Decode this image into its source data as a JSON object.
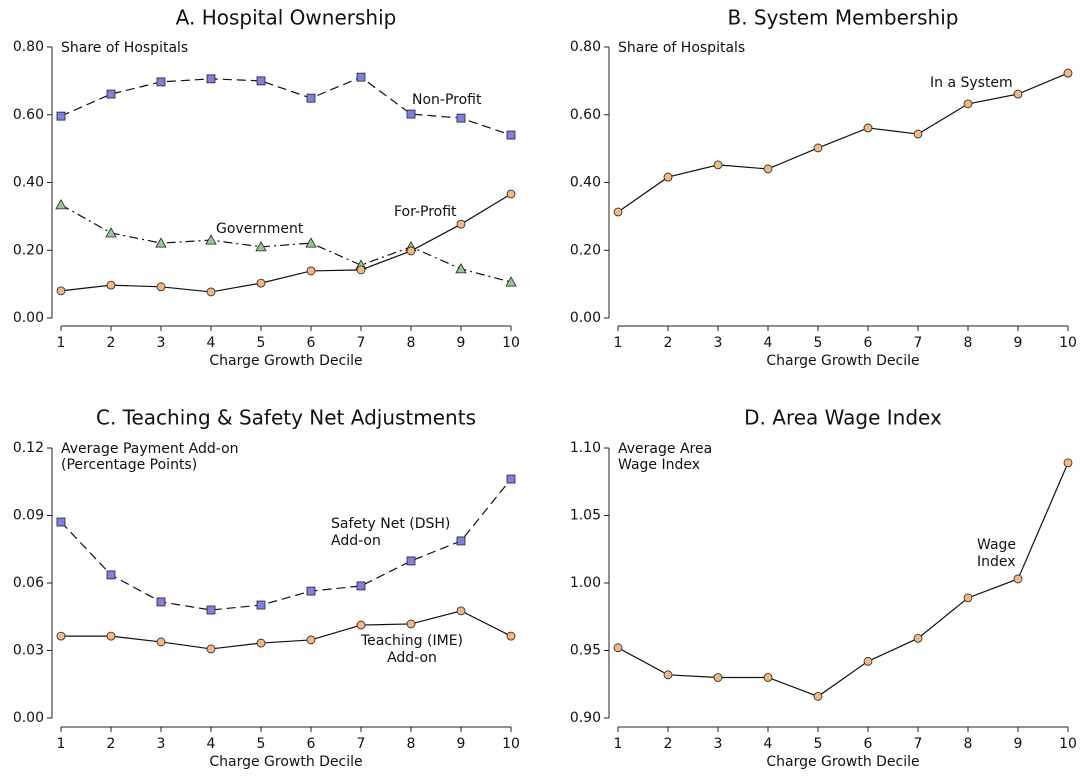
{
  "chart_data": [
    {
      "type": "line",
      "title": "A. Hospital Ownership",
      "ylabel": [
        "Share of Hospitals"
      ],
      "xlabel": "Charge Growth Decile",
      "x": [
        1,
        2,
        3,
        4,
        5,
        6,
        7,
        8,
        9,
        10
      ],
      "xlim": [
        1,
        10
      ],
      "xticks": [
        1,
        2,
        3,
        4,
        5,
        6,
        7,
        8,
        9,
        10
      ],
      "ylim": [
        0,
        0.8
      ],
      "yticks": [
        {
          "value": 0,
          "label": "0.00"
        },
        {
          "value": 0.2,
          "label": "0.20"
        },
        {
          "value": 0.4,
          "label": "0.40"
        },
        {
          "value": 0.6,
          "label": "0.60"
        },
        {
          "value": 0.8,
          "label": "0.80"
        }
      ],
      "series": [
        {
          "name": [
            "Non-Profit"
          ],
          "color": "#7f7fe6",
          "marker": "square",
          "linestyle": "dashed",
          "values": [
            0.596,
            0.661,
            0.697,
            0.706,
            0.7,
            0.649,
            0.711,
            0.602,
            0.59,
            0.54
          ]
        },
        {
          "name": [
            "Government"
          ],
          "color": "#90cc90",
          "marker": "triangle",
          "linestyle": "dashdot",
          "values": [
            0.334,
            0.251,
            0.221,
            0.23,
            0.21,
            0.221,
            0.156,
            0.21,
            0.145,
            0.106
          ]
        },
        {
          "name": [
            "For-Profit"
          ],
          "color": "#f7b67c",
          "marker": "circle",
          "linestyle": "solid",
          "values": [
            0.08,
            0.097,
            0.092,
            0.077,
            0.103,
            0.139,
            0.142,
            0.198,
            0.277,
            0.366
          ]
        }
      ]
    },
    {
      "type": "line",
      "title": "B. System Membership",
      "ylabel": [
        "Share of Hospitals"
      ],
      "xlabel": "Charge Growth Decile",
      "x": [
        1,
        2,
        3,
        4,
        5,
        6,
        7,
        8,
        9,
        10
      ],
      "xlim": [
        1,
        10
      ],
      "xticks": [
        1,
        2,
        3,
        4,
        5,
        6,
        7,
        8,
        9,
        10
      ],
      "ylim": [
        0,
        0.8
      ],
      "yticks": [
        {
          "value": 0,
          "label": "0.00"
        },
        {
          "value": 0.2,
          "label": "0.20"
        },
        {
          "value": 0.4,
          "label": "0.40"
        },
        {
          "value": 0.6,
          "label": "0.60"
        },
        {
          "value": 0.8,
          "label": "0.80"
        }
      ],
      "series": [
        {
          "name": [
            "In a System"
          ],
          "color": "#f7b67c",
          "marker": "circle",
          "linestyle": "solid",
          "values": [
            0.313,
            0.416,
            0.452,
            0.44,
            0.502,
            0.561,
            0.543,
            0.632,
            0.661,
            0.723
          ]
        }
      ]
    },
    {
      "type": "line",
      "title": "C. Teaching & Safety Net Adjustments",
      "ylabel": [
        "Average Payment Add-on",
        "(Percentage Points)"
      ],
      "xlabel": "Charge Growth Decile",
      "x": [
        1,
        2,
        3,
        4,
        5,
        6,
        7,
        8,
        9,
        10
      ],
      "xlim": [
        1,
        10
      ],
      "xticks": [
        1,
        2,
        3,
        4,
        5,
        6,
        7,
        8,
        9,
        10
      ],
      "ylim": [
        0,
        0.12
      ],
      "yticks": [
        {
          "value": 0,
          "label": "0.00"
        },
        {
          "value": 0.03,
          "label": "0.03"
        },
        {
          "value": 0.06,
          "label": "0.06"
        },
        {
          "value": 0.09,
          "label": "0.09"
        },
        {
          "value": 0.12,
          "label": "0.12"
        }
      ],
      "series": [
        {
          "name": [
            "Safety Net (DSH)",
            "Add-on"
          ],
          "color": "#7f7fe6",
          "marker": "square",
          "linestyle": "dashed",
          "values": [
            0.0871,
            0.0636,
            0.0516,
            0.048,
            0.0502,
            0.0564,
            0.0587,
            0.0698,
            0.0787,
            0.1062
          ]
        },
        {
          "name": [
            "Teaching (IME)",
            "Add-on"
          ],
          "color": "#f7b67c",
          "marker": "circle",
          "linestyle": "solid",
          "values": [
            0.0364,
            0.0364,
            0.0338,
            0.0307,
            0.0333,
            0.0347,
            0.0413,
            0.0418,
            0.0476,
            0.0364
          ]
        }
      ]
    },
    {
      "type": "line",
      "title": "D. Area Wage Index",
      "ylabel": [
        "Average Area",
        "Wage Index"
      ],
      "xlabel": "Charge Growth Decile",
      "x": [
        1,
        2,
        3,
        4,
        5,
        6,
        7,
        8,
        9,
        10
      ],
      "xlim": [
        1,
        10
      ],
      "xticks": [
        1,
        2,
        3,
        4,
        5,
        6,
        7,
        8,
        9,
        10
      ],
      "ylim": [
        0.9,
        1.1
      ],
      "yticks": [
        {
          "value": 0.9,
          "label": "0.90"
        },
        {
          "value": 0.95,
          "label": "0.95"
        },
        {
          "value": 1.0,
          "label": "1.00"
        },
        {
          "value": 1.05,
          "label": "1.05"
        },
        {
          "value": 1.1,
          "label": "1.10"
        }
      ],
      "series": [
        {
          "name": [
            "Wage",
            "Index"
          ],
          "color": "#f7b67c",
          "marker": "circle",
          "linestyle": "solid",
          "values": [
            0.952,
            0.932,
            0.93,
            0.93,
            0.916,
            0.942,
            0.959,
            0.989,
            1.003,
            1.089
          ]
        }
      ]
    }
  ]
}
